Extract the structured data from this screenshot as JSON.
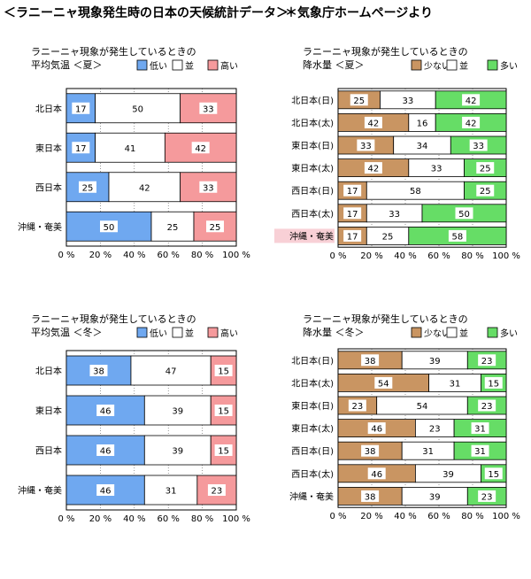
{
  "header": {
    "title": "＜ラニーニャ現象発生時の日本の天候統計データ＞",
    "source": "＊気象庁ホームページより"
  },
  "chart_data": [
    {
      "type": "bar",
      "title": "ラニーニャ現象が発生しているときの",
      "subtitle": "平均気温 ＜夏＞",
      "categories": [
        "北日本",
        "東日本",
        "西日本",
        "沖縄・奄美"
      ],
      "series": [
        {
          "name": "低い",
          "color": "#6fa8f0",
          "values": [
            17,
            17,
            25,
            50
          ]
        },
        {
          "name": "並",
          "color": "#ffffff",
          "values": [
            50,
            41,
            42,
            25
          ]
        },
        {
          "name": "高い",
          "color": "#f59a9c",
          "values": [
            33,
            42,
            33,
            25
          ]
        }
      ],
      "highlight": [],
      "x_ticks": [
        "0 %",
        "20 %",
        "40 %",
        "60 %",
        "80 %",
        "100 %"
      ],
      "xlim": [
        0,
        100
      ],
      "stacked": true,
      "orientation": "horizontal",
      "legend": "top-right"
    },
    {
      "type": "bar",
      "title": "ラニーニャ現象が発生しているときの",
      "subtitle": "降水量 ＜夏＞",
      "categories": [
        "北日本(日)",
        "北日本(太)",
        "東日本(日)",
        "東日本(太)",
        "西日本(日)",
        "西日本(太)",
        "沖縄・奄美"
      ],
      "series": [
        {
          "name": "少ない",
          "color": "#c99562",
          "values": [
            25,
            42,
            33,
            42,
            17,
            17,
            17
          ]
        },
        {
          "name": "並",
          "color": "#ffffff",
          "values": [
            33,
            16,
            34,
            33,
            58,
            33,
            25
          ]
        },
        {
          "name": "多い",
          "color": "#66dd66",
          "values": [
            42,
            42,
            33,
            25,
            25,
            50,
            58
          ]
        }
      ],
      "highlight": [
        "沖縄・奄美"
      ],
      "x_ticks": [
        "0 %",
        "20 %",
        "40 %",
        "60 %",
        "80 %",
        "100 %"
      ],
      "xlim": [
        0,
        100
      ],
      "stacked": true,
      "orientation": "horizontal",
      "legend": "top-right"
    },
    {
      "type": "bar",
      "title": "ラニーニャ現象が発生しているときの",
      "subtitle": "平均気温 ＜冬＞",
      "categories": [
        "北日本",
        "東日本",
        "西日本",
        "沖縄・奄美"
      ],
      "series": [
        {
          "name": "低い",
          "color": "#6fa8f0",
          "values": [
            38,
            46,
            46,
            46
          ]
        },
        {
          "name": "並",
          "color": "#ffffff",
          "values": [
            47,
            39,
            39,
            31
          ]
        },
        {
          "name": "高い",
          "color": "#f59a9c",
          "values": [
            15,
            15,
            15,
            23
          ]
        }
      ],
      "highlight": [],
      "x_ticks": [
        "0 %",
        "20 %",
        "40 %",
        "60 %",
        "80 %",
        "100 %"
      ],
      "xlim": [
        0,
        100
      ],
      "stacked": true,
      "orientation": "horizontal",
      "legend": "top-right"
    },
    {
      "type": "bar",
      "title": "ラニーニャ現象が発生しているときの",
      "subtitle": "降水量 ＜冬＞",
      "categories": [
        "北日本(日)",
        "北日本(太)",
        "東日本(日)",
        "東日本(太)",
        "西日本(日)",
        "西日本(太)",
        "沖縄・奄美"
      ],
      "series": [
        {
          "name": "少ない",
          "color": "#c99562",
          "values": [
            38,
            54,
            23,
            46,
            38,
            46,
            38
          ]
        },
        {
          "name": "並",
          "color": "#ffffff",
          "values": [
            39,
            31,
            54,
            23,
            31,
            39,
            39
          ]
        },
        {
          "name": "多い",
          "color": "#66dd66",
          "values": [
            23,
            15,
            23,
            31,
            31,
            15,
            23
          ]
        }
      ],
      "highlight": [],
      "x_ticks": [
        "0 %",
        "20 %",
        "40 %",
        "60 %",
        "80 %",
        "100 %"
      ],
      "xlim": [
        0,
        100
      ],
      "stacked": true,
      "orientation": "horizontal",
      "legend": "top-right"
    }
  ]
}
